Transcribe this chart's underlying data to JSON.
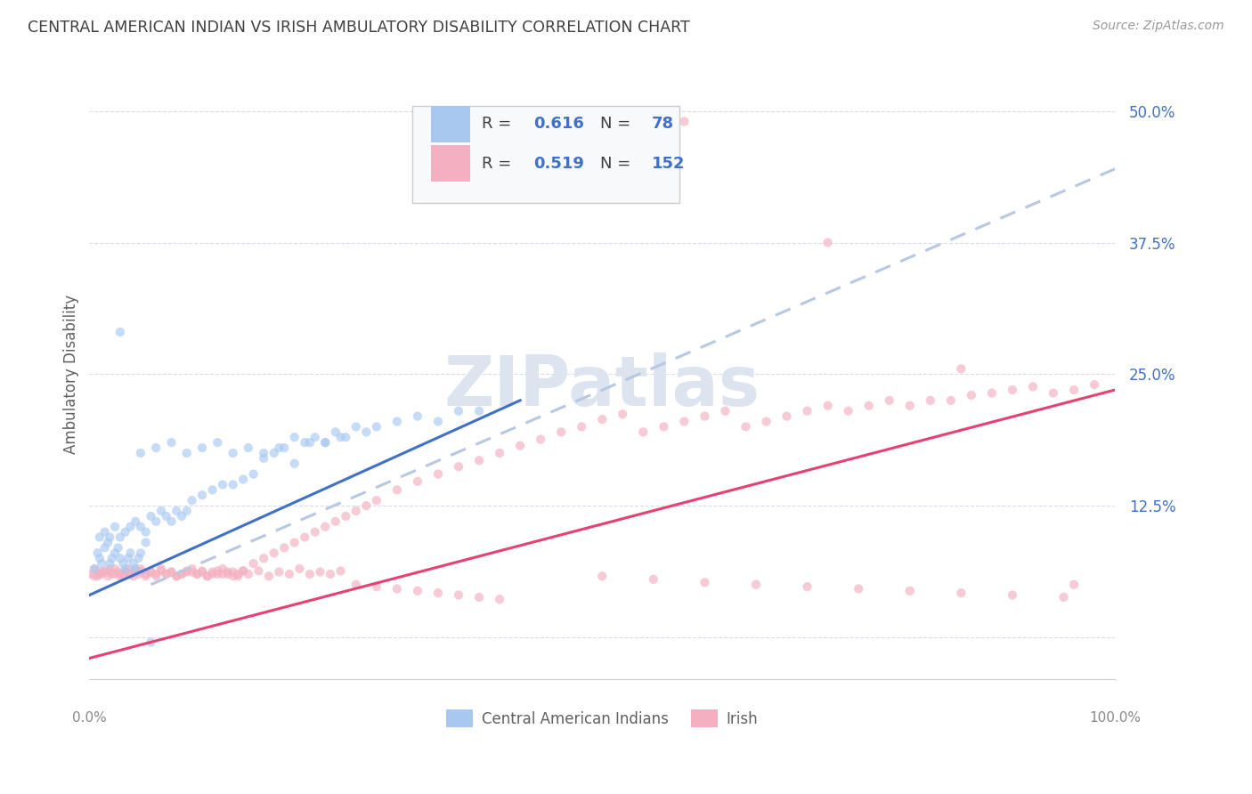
{
  "title": "CENTRAL AMERICAN INDIAN VS IRISH AMBULATORY DISABILITY CORRELATION CHART",
  "source": "Source: ZipAtlas.com",
  "ylabel": "Ambulatory Disability",
  "xlim": [
    0.0,
    1.0
  ],
  "ylim": [
    -0.04,
    0.54
  ],
  "yticks": [
    0.0,
    0.125,
    0.25,
    0.375,
    0.5
  ],
  "ytick_labels": [
    "",
    "12.5%",
    "25.0%",
    "37.5%",
    "50.0%"
  ],
  "blue_color": "#a8c8f0",
  "pink_color": "#f4b0c0",
  "blue_line_color": "#4070c8",
  "pink_line_color": "#e84070",
  "dashed_line_color": "#b8c8e0",
  "label_color": "#4070c8",
  "ylabel_color": "#606060",
  "background_color": "#ffffff",
  "grid_color": "#d8dce8",
  "title_color": "#404040",
  "blue_trend_x": [
    0.0,
    0.42
  ],
  "blue_trend_y": [
    0.04,
    0.225
  ],
  "pink_trend_x": [
    0.0,
    1.0
  ],
  "pink_trend_y": [
    -0.02,
    0.235
  ],
  "dashed_trend_x": [
    0.06,
    1.0
  ],
  "dashed_trend_y": [
    0.05,
    0.445
  ],
  "scatter_size": 55,
  "scatter_alpha": 0.65,
  "line_width": 2.2,
  "blue_scatter_x": [
    0.005,
    0.008,
    0.01,
    0.012,
    0.015,
    0.018,
    0.02,
    0.022,
    0.025,
    0.028,
    0.03,
    0.033,
    0.035,
    0.038,
    0.04,
    0.043,
    0.045,
    0.048,
    0.05,
    0.055,
    0.01,
    0.015,
    0.02,
    0.025,
    0.03,
    0.035,
    0.04,
    0.045,
    0.05,
    0.055,
    0.06,
    0.065,
    0.07,
    0.075,
    0.08,
    0.085,
    0.09,
    0.095,
    0.1,
    0.11,
    0.12,
    0.13,
    0.14,
    0.15,
    0.16,
    0.17,
    0.18,
    0.19,
    0.2,
    0.21,
    0.22,
    0.23,
    0.24,
    0.25,
    0.26,
    0.27,
    0.28,
    0.3,
    0.32,
    0.34,
    0.36,
    0.38,
    0.05,
    0.065,
    0.08,
    0.095,
    0.11,
    0.125,
    0.14,
    0.155,
    0.17,
    0.185,
    0.2,
    0.215,
    0.23,
    0.245,
    0.03,
    0.06
  ],
  "blue_scatter_y": [
    0.065,
    0.08,
    0.075,
    0.07,
    0.085,
    0.09,
    0.07,
    0.075,
    0.08,
    0.085,
    0.075,
    0.07,
    0.065,
    0.075,
    0.08,
    0.07,
    0.065,
    0.075,
    0.08,
    0.09,
    0.095,
    0.1,
    0.095,
    0.105,
    0.095,
    0.1,
    0.105,
    0.11,
    0.105,
    0.1,
    0.115,
    0.11,
    0.12,
    0.115,
    0.11,
    0.12,
    0.115,
    0.12,
    0.13,
    0.135,
    0.14,
    0.145,
    0.145,
    0.15,
    0.155,
    0.17,
    0.175,
    0.18,
    0.165,
    0.185,
    0.19,
    0.185,
    0.195,
    0.19,
    0.2,
    0.195,
    0.2,
    0.205,
    0.21,
    0.205,
    0.215,
    0.215,
    0.175,
    0.18,
    0.185,
    0.175,
    0.18,
    0.185,
    0.175,
    0.18,
    0.175,
    0.18,
    0.19,
    0.185,
    0.185,
    0.19,
    0.29,
    -0.005
  ],
  "pink_scatter_x": [
    0.002,
    0.005,
    0.008,
    0.01,
    0.012,
    0.015,
    0.018,
    0.02,
    0.022,
    0.025,
    0.028,
    0.03,
    0.033,
    0.035,
    0.038,
    0.04,
    0.043,
    0.045,
    0.048,
    0.05,
    0.055,
    0.06,
    0.065,
    0.07,
    0.075,
    0.08,
    0.085,
    0.09,
    0.095,
    0.1,
    0.105,
    0.11,
    0.115,
    0.12,
    0.125,
    0.13,
    0.135,
    0.14,
    0.145,
    0.15,
    0.005,
    0.01,
    0.015,
    0.02,
    0.025,
    0.03,
    0.035,
    0.04,
    0.045,
    0.05,
    0.055,
    0.06,
    0.065,
    0.07,
    0.075,
    0.08,
    0.085,
    0.09,
    0.095,
    0.1,
    0.105,
    0.11,
    0.115,
    0.12,
    0.125,
    0.13,
    0.135,
    0.14,
    0.145,
    0.15,
    0.16,
    0.17,
    0.18,
    0.19,
    0.2,
    0.21,
    0.22,
    0.23,
    0.24,
    0.25,
    0.26,
    0.27,
    0.28,
    0.3,
    0.32,
    0.34,
    0.36,
    0.38,
    0.4,
    0.42,
    0.44,
    0.46,
    0.48,
    0.5,
    0.52,
    0.54,
    0.56,
    0.58,
    0.6,
    0.62,
    0.64,
    0.66,
    0.68,
    0.7,
    0.72,
    0.74,
    0.76,
    0.78,
    0.8,
    0.82,
    0.84,
    0.86,
    0.88,
    0.9,
    0.92,
    0.94,
    0.96,
    0.98,
    0.155,
    0.165,
    0.175,
    0.185,
    0.195,
    0.205,
    0.215,
    0.225,
    0.235,
    0.245,
    0.26,
    0.28,
    0.3,
    0.32,
    0.34,
    0.36,
    0.38,
    0.4,
    0.5,
    0.55,
    0.6,
    0.65,
    0.7,
    0.75,
    0.8,
    0.85,
    0.9,
    0.95,
    0.58,
    0.72,
    0.85,
    0.96
  ],
  "pink_scatter_y": [
    0.06,
    0.065,
    0.058,
    0.062,
    0.06,
    0.063,
    0.058,
    0.062,
    0.06,
    0.065,
    0.062,
    0.06,
    0.058,
    0.062,
    0.065,
    0.06,
    0.058,
    0.062,
    0.06,
    0.065,
    0.06,
    0.062,
    0.058,
    0.063,
    0.06,
    0.062,
    0.058,
    0.06,
    0.062,
    0.065,
    0.06,
    0.062,
    0.058,
    0.06,
    0.063,
    0.06,
    0.062,
    0.058,
    0.06,
    0.063,
    0.058,
    0.06,
    0.062,
    0.065,
    0.06,
    0.058,
    0.062,
    0.06,
    0.063,
    0.062,
    0.058,
    0.062,
    0.06,
    0.065,
    0.06,
    0.062,
    0.058,
    0.06,
    0.063,
    0.062,
    0.06,
    0.063,
    0.058,
    0.062,
    0.06,
    0.065,
    0.06,
    0.062,
    0.058,
    0.063,
    0.07,
    0.075,
    0.08,
    0.085,
    0.09,
    0.095,
    0.1,
    0.105,
    0.11,
    0.115,
    0.12,
    0.125,
    0.13,
    0.14,
    0.148,
    0.155,
    0.162,
    0.168,
    0.175,
    0.182,
    0.188,
    0.195,
    0.2,
    0.207,
    0.212,
    0.195,
    0.2,
    0.205,
    0.21,
    0.215,
    0.2,
    0.205,
    0.21,
    0.215,
    0.22,
    0.215,
    0.22,
    0.225,
    0.22,
    0.225,
    0.225,
    0.23,
    0.232,
    0.235,
    0.238,
    0.232,
    0.235,
    0.24,
    0.06,
    0.063,
    0.058,
    0.062,
    0.06,
    0.065,
    0.06,
    0.062,
    0.06,
    0.063,
    0.05,
    0.048,
    0.046,
    0.044,
    0.042,
    0.04,
    0.038,
    0.036,
    0.058,
    0.055,
    0.052,
    0.05,
    0.048,
    0.046,
    0.044,
    0.042,
    0.04,
    0.038,
    0.49,
    0.375,
    0.255,
    0.05
  ]
}
